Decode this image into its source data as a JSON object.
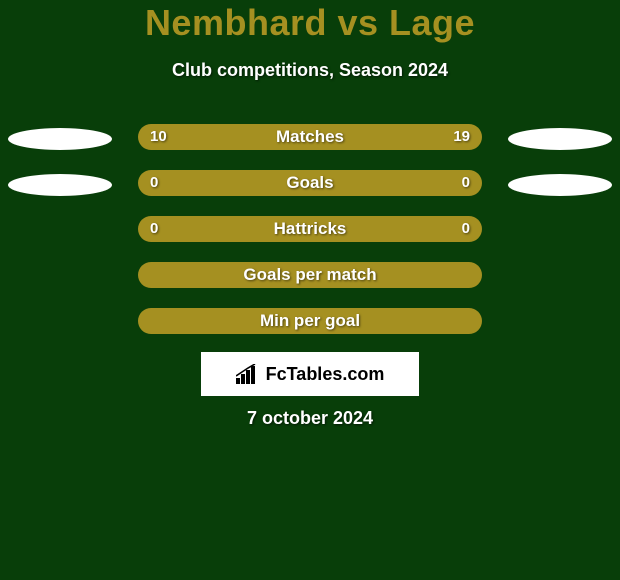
{
  "background_color": "#083e09",
  "title": {
    "text": "Nembhard vs Lage",
    "color": "#a59021",
    "fontsize": 36,
    "fontweight": 800
  },
  "subtitle": {
    "text": "Club competitions, Season 2024",
    "color": "#ffffff",
    "fontsize": 18
  },
  "bars": {
    "track_width": 344,
    "track_height": 26,
    "track_radius": 14,
    "left_color": "#a59021",
    "right_color": "#a59021",
    "label_color": "#ffffff",
    "label_fontsize": 17,
    "value_fontsize": 15,
    "ellipse_color": "#ffffff",
    "rows": [
      {
        "label": "Matches",
        "left_value": "10",
        "right_value": "19",
        "left_ratio": 0.345,
        "right_ratio": 0.655,
        "show_ellipses": true,
        "show_values": true
      },
      {
        "label": "Goals",
        "left_value": "0",
        "right_value": "0",
        "left_ratio": 0.5,
        "right_ratio": 0.5,
        "show_ellipses": true,
        "show_values": true
      },
      {
        "label": "Hattricks",
        "left_value": "0",
        "right_value": "0",
        "left_ratio": 0.5,
        "right_ratio": 0.5,
        "show_ellipses": false,
        "show_values": true
      },
      {
        "label": "Goals per match",
        "left_value": "",
        "right_value": "",
        "left_ratio": 0.5,
        "right_ratio": 0.5,
        "show_ellipses": false,
        "show_values": false
      },
      {
        "label": "Min per goal",
        "left_value": "",
        "right_value": "",
        "left_ratio": 0.5,
        "right_ratio": 0.5,
        "show_ellipses": false,
        "show_values": false
      }
    ]
  },
  "brand": {
    "text": "FcTables.com",
    "text_color": "#000000",
    "box_bg": "#ffffff",
    "icon_color": "#000000"
  },
  "date": {
    "text": "7 october 2024",
    "color": "#ffffff",
    "fontsize": 18
  }
}
